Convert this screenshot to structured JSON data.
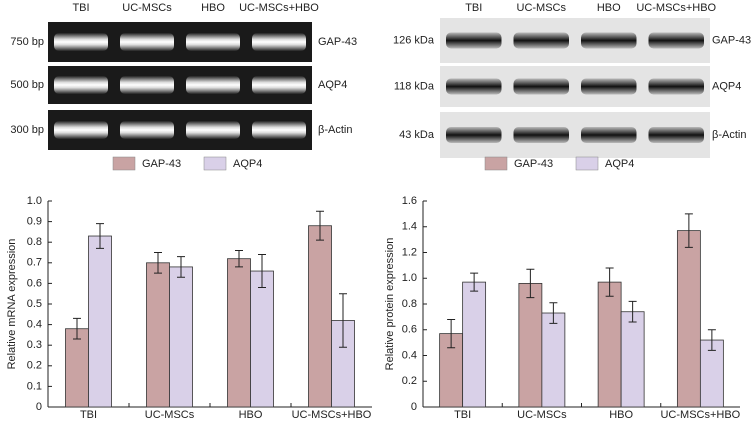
{
  "gels": [
    {
      "lanes": [
        "TBI",
        "UC-MSCs",
        "HBO",
        "UC-MSCs+HBO"
      ],
      "sizes": [
        "750 bp",
        "500 bp",
        "300 bp"
      ],
      "markers": [
        "GAP-43",
        "AQP4",
        "β-Actin"
      ]
    },
    {
      "lanes": [
        "TBI",
        "UC-MSCs",
        "HBO",
        "UC-MSCs+HBO"
      ],
      "sizes": [
        "126 kDa",
        "118 kDa",
        "43 kDa"
      ],
      "markers": [
        "GAP-43",
        "AQP4",
        "β-Actin"
      ]
    }
  ],
  "chart_data": [
    {
      "type": "bar",
      "y_label": "Relative mRNA expression",
      "legend": "top",
      "categories": [
        "TBI",
        "UC-MSCs",
        "HBO",
        "UC-MSCs+HBO"
      ],
      "series": [
        {
          "name": "GAP-43",
          "color": "#c9a3a3",
          "values": [
            0.38,
            0.7,
            0.72,
            0.88
          ],
          "errors": [
            0.05,
            0.05,
            0.04,
            0.07
          ]
        },
        {
          "name": "AQP4",
          "color": "#d9d0e8",
          "values": [
            0.83,
            0.68,
            0.66,
            0.42
          ],
          "errors": [
            0.06,
            0.05,
            0.08,
            0.13
          ]
        }
      ],
      "ylim": [
        0,
        1.0
      ],
      "yticks": [
        0,
        0.1,
        0.2,
        0.3,
        0.4,
        0.5,
        0.6,
        0.7,
        0.8,
        0.9,
        {
          "value": 1.0,
          "label": "1.0"
        }
      ]
    },
    {
      "type": "bar",
      "y_label": "Relative protein expression",
      "legend": "top",
      "categories": [
        "TBI",
        "UC-MSCs",
        "HBO",
        "UC-MSCs+HBO"
      ],
      "series": [
        {
          "name": "GAP-43",
          "color": "#c9a3a3",
          "values": [
            0.57,
            0.96,
            0.97,
            1.37
          ],
          "errors": [
            0.11,
            0.11,
            0.11,
            0.13
          ]
        },
        {
          "name": "AQP4",
          "color": "#d9d0e8",
          "values": [
            0.97,
            0.73,
            0.74,
            0.52
          ],
          "errors": [
            0.07,
            0.08,
            0.08,
            0.08
          ]
        }
      ],
      "ylim": [
        0,
        1.6
      ],
      "yticks": [
        0,
        0.2,
        0.4,
        0.6,
        0.8,
        {
          "value": 1.0,
          "label": "1.0"
        },
        1.2,
        1.4,
        1.6
      ]
    }
  ]
}
